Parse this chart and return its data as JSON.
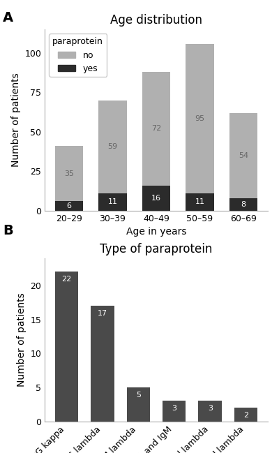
{
  "panel_A": {
    "title": "Age distribution",
    "xlabel": "Age in years",
    "ylabel": "Number of patients",
    "categories": [
      "20–29",
      "30–39",
      "40–49",
      "50–59",
      "60–69"
    ],
    "no_values": [
      35,
      59,
      72,
      95,
      54
    ],
    "yes_values": [
      6,
      11,
      16,
      11,
      8
    ],
    "color_no": "#b0b0b0",
    "color_yes": "#2b2b2b",
    "ylim": [
      0,
      115
    ],
    "yticks": [
      0,
      25,
      50,
      75,
      100
    ],
    "legend_title": "paraprotein"
  },
  "panel_B": {
    "title": "Type of paraprotein",
    "xlabel": "",
    "ylabel": "Number of patients",
    "categories": [
      "IgG kappa",
      "IgG lambda",
      "IgM lambda",
      "IgG and IgM",
      "IgG kappa and lambda",
      "IgM kappa and lambda"
    ],
    "values": [
      22,
      17,
      5,
      3,
      3,
      2
    ],
    "color": "#4a4a4a",
    "ylim": [
      0,
      24
    ],
    "yticks": [
      0,
      5,
      10,
      15,
      20
    ]
  },
  "bg_color": "#ffffff",
  "panel_label_fontsize": 14,
  "title_fontsize": 12,
  "axis_label_fontsize": 10,
  "tick_fontsize": 9,
  "bar_label_fontsize": 8
}
